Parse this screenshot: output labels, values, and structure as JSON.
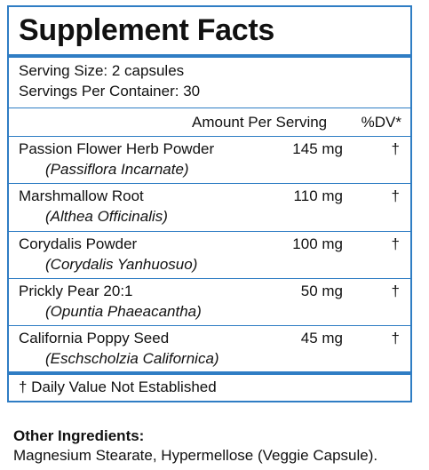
{
  "panel": {
    "title": "Supplement Facts",
    "serving_size": "Serving Size: 2 capsules",
    "servings_per_container": "Servings Per Container: 30",
    "header": {
      "amount": "Amount Per Serving",
      "dv": "%DV*"
    },
    "ingredients": [
      {
        "name": "Passion Flower Herb Powder",
        "latin": "(Passiflora Incarnate)",
        "amount": "145 mg",
        "dv": "†"
      },
      {
        "name": "Marshmallow Root",
        "latin": "(Althea Officinalis)",
        "amount": "110 mg",
        "dv": "†"
      },
      {
        "name": "Corydalis Powder",
        "latin": "(Corydalis Yanhuosuo)",
        "amount": "100 mg",
        "dv": "†"
      },
      {
        "name": "Prickly Pear 20:1",
        "latin": "(Opuntia Phaeacantha)",
        "amount": "50 mg",
        "dv": "†"
      },
      {
        "name": "California Poppy Seed",
        "latin": "(Eschscholzia Californica)",
        "amount": "45 mg",
        "dv": "†"
      }
    ],
    "footnote": "† Daily Value Not Established",
    "border_color": "#2f7dc4"
  },
  "other_ingredients": {
    "heading": "Other Ingredients:",
    "text": "Magnesium Stearate, Hypermellose (Veggie Capsule)."
  }
}
